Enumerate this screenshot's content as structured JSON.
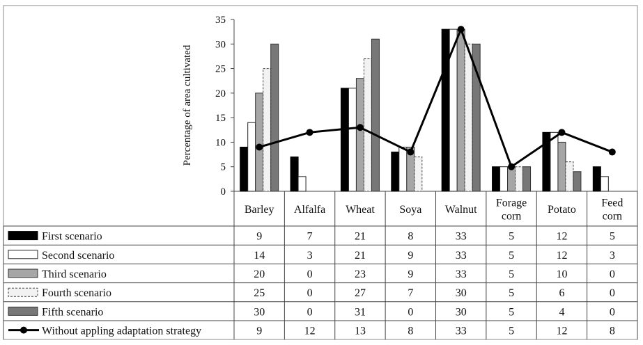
{
  "chart_data": {
    "type": "bar",
    "ylabel": "Percentage of area cultivated",
    "ylim": [
      0,
      35
    ],
    "yticks": [
      "0",
      "5",
      "10",
      "15",
      "20",
      "25",
      "30",
      "35"
    ],
    "categories": [
      "Barley",
      "Alfalfa",
      "Wheat",
      "Soya",
      "Walnut",
      "Forage corn",
      "Potato",
      "Feed corn"
    ],
    "category_lines": [
      [
        "Barley"
      ],
      [
        "Alfalfa"
      ],
      [
        "Wheat"
      ],
      [
        "Soya"
      ],
      [
        "Walnut"
      ],
      [
        "Forage",
        "corn"
      ],
      [
        "Potato"
      ],
      [
        "Feed",
        "corn"
      ]
    ],
    "series": [
      {
        "name": "First scenario",
        "kind": "bar",
        "fill": "#000000",
        "stroke": "#000000",
        "dash": false,
        "values": [
          9,
          7,
          21,
          8,
          33,
          5,
          12,
          5
        ],
        "labels": [
          "9",
          "7",
          "21",
          "8",
          "33",
          "5",
          "12",
          "5"
        ]
      },
      {
        "name": "Second scenario",
        "kind": "bar",
        "fill": "#ffffff",
        "stroke": "#222222",
        "dash": false,
        "values": [
          14,
          3,
          21,
          9,
          33,
          5,
          12,
          3
        ],
        "labels": [
          "14",
          "3",
          "21",
          "9",
          "33",
          "5",
          "12",
          "3"
        ]
      },
      {
        "name": "Third scenario",
        "kind": "bar",
        "fill": "#a6a6a6",
        "stroke": "#333333",
        "dash": false,
        "values": [
          20,
          0,
          23,
          9,
          33,
          5,
          10,
          0
        ],
        "labels": [
          "20",
          "0",
          "23",
          "9",
          "33",
          "5",
          "10",
          "0"
        ]
      },
      {
        "name": "Fourth scenario",
        "kind": "bar",
        "fill": "#f2f2f2",
        "stroke": "#444444",
        "dash": true,
        "values": [
          25,
          0,
          27,
          7,
          30,
          5,
          6,
          0
        ],
        "labels": [
          "25",
          "0",
          "27",
          "7",
          "30",
          "5",
          "6",
          "0"
        ]
      },
      {
        "name": "Fifth scenario",
        "kind": "bar",
        "fill": "#777777",
        "stroke": "#333333",
        "dash": false,
        "values": [
          30,
          0,
          31,
          0,
          30,
          5,
          4,
          0
        ],
        "labels": [
          "30",
          "0",
          "31",
          "0",
          "30",
          "5",
          "4",
          "0"
        ]
      },
      {
        "name": "Without appling adaptation strategy",
        "kind": "line",
        "fill": "#000000",
        "stroke": "#000000",
        "dash": false,
        "values": [
          9,
          12,
          13,
          8,
          33,
          5,
          12,
          8
        ],
        "labels": [
          "9",
          "12",
          "13",
          "8",
          "33",
          "5",
          "12",
          "8"
        ]
      }
    ],
    "grid": false,
    "legend": "data table below chart"
  }
}
